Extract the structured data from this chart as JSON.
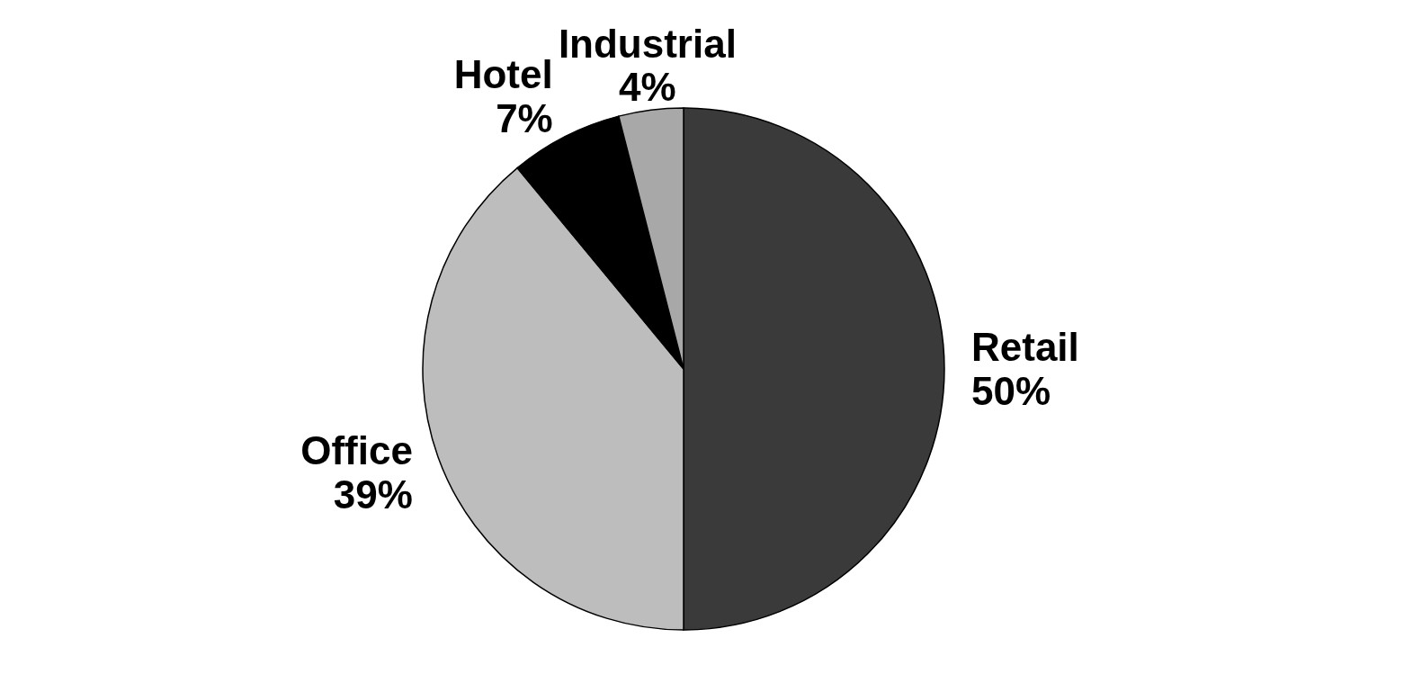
{
  "chart_data": {
    "type": "pie",
    "categories": [
      "Retail",
      "Office",
      "Hotel",
      "Industrial"
    ],
    "values": [
      50,
      39,
      7,
      4
    ],
    "value_labels": [
      "50%",
      "39%",
      "7%",
      "4%"
    ],
    "colors": [
      "#3a3a3a",
      "#bdbdbd",
      "#000000",
      "#a8a8a8"
    ]
  }
}
